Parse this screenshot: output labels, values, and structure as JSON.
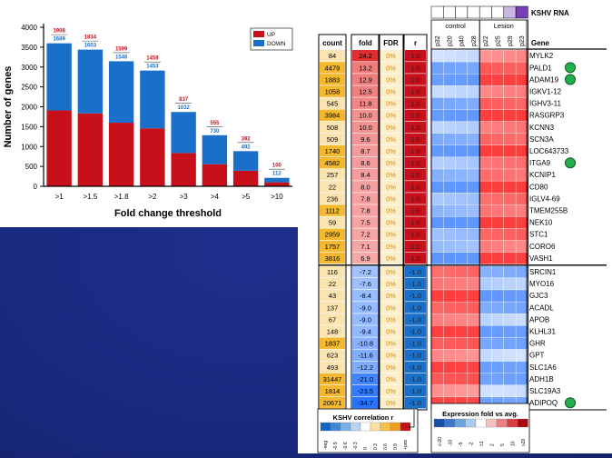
{
  "bar_chart": {
    "legend": [
      {
        "label": "UP",
        "color": "#c8101a"
      },
      {
        "label": "DOWN",
        "color": "#1a6fc9"
      }
    ]
  },
  "chart_data": [
    {
      "type": "bar",
      "xlabel": "Fold change threshold",
      "ylabel": "Number of genes",
      "ylim": [
        0,
        4000
      ],
      "yticks": [
        0,
        500,
        1000,
        1500,
        2000,
        2500,
        3000,
        3500,
        4000
      ],
      "categories": [
        ">1",
        ">1.5",
        ">1.8",
        ">2",
        ">3",
        ">4",
        ">5",
        ">10"
      ],
      "stacked": true,
      "series": [
        {
          "name": "UP",
          "color": "#c8101a",
          "values": [
            1908,
            1834,
            1599,
            1458,
            837,
            555,
            392,
            100
          ]
        },
        {
          "name": "DOWN",
          "color": "#1a6fc9",
          "values": [
            1689,
            1603,
            1546,
            1453,
            1032,
            730,
            492,
            112
          ]
        }
      ],
      "legend_position": "top-right"
    },
    {
      "type": "heatmap",
      "title": "KSHV RNA",
      "groups": [
        {
          "label": "control"
        },
        {
          "label": "Lesion"
        }
      ],
      "samples": [
        "p32",
        "p20",
        "p40",
        "p28",
        "p22",
        "p25",
        "p29",
        "p23"
      ],
      "column_headers": {
        "count": "count",
        "fold": "fold",
        "fdr": "FDR",
        "r": "r",
        "gene": "Gene"
      },
      "rows": [
        {
          "count": "84",
          "fold": "24.2",
          "fdr": "0%",
          "r": "1.0",
          "gene": "MYLK2",
          "dot": false
        },
        {
          "count": "4479",
          "fold": "13.2",
          "fdr": "0%",
          "r": "1.0",
          "gene": "PALD1",
          "dot": true
        },
        {
          "count": "1883",
          "fold": "12.9",
          "fdr": "0%",
          "r": "1.0",
          "gene": "ADAM19",
          "dot": true
        },
        {
          "count": "1058",
          "fold": "12.5",
          "fdr": "0%",
          "r": "1.0",
          "gene": "IGKV1-12",
          "dot": false
        },
        {
          "count": "545",
          "fold": "11.8",
          "fdr": "0%",
          "r": "1.0",
          "gene": "IGHV3-11",
          "dot": false
        },
        {
          "count": "3984",
          "fold": "10.0",
          "fdr": "0%",
          "r": "1.0",
          "gene": "RASGRP3",
          "dot": false
        },
        {
          "count": "508",
          "fold": "10.0",
          "fdr": "0%",
          "r": "1.0",
          "gene": "KCNN3",
          "dot": false
        },
        {
          "count": "509",
          "fold": "9.6",
          "fdr": "0%",
          "r": "1.0",
          "gene": "SCN3A",
          "dot": false
        },
        {
          "count": "1740",
          "fold": "8.7",
          "fdr": "0%",
          "r": "1.0",
          "gene": "LOC643733",
          "dot": false
        },
        {
          "count": "4582",
          "fold": "8.6",
          "fdr": "0%",
          "r": "1.0",
          "gene": "ITGA9",
          "dot": true
        },
        {
          "count": "257",
          "fold": "8.4",
          "fdr": "0%",
          "r": "1.0",
          "gene": "KCNIP1",
          "dot": false
        },
        {
          "count": "22",
          "fold": "8.0",
          "fdr": "0%",
          "r": "1.0",
          "gene": "CD80",
          "dot": false
        },
        {
          "count": "236",
          "fold": "7.8",
          "fdr": "0%",
          "r": "1.0",
          "gene": "IGLV4-69",
          "dot": false
        },
        {
          "count": "1112",
          "fold": "7.8",
          "fdr": "0%",
          "r": "1.0",
          "gene": "TMEM255B",
          "dot": false
        },
        {
          "count": "59",
          "fold": "7.5",
          "fdr": "0%",
          "r": "1.0",
          "gene": "NEK10",
          "dot": false
        },
        {
          "count": "2959",
          "fold": "7.2",
          "fdr": "0%",
          "r": "1.0",
          "gene": "STC1",
          "dot": false
        },
        {
          "count": "1757",
          "fold": "7.1",
          "fdr": "0%",
          "r": "1.0",
          "gene": "CORO6",
          "dot": false
        },
        {
          "count": "3816",
          "fold": "6.9",
          "fdr": "0%",
          "r": "1.0",
          "gene": "VASH1",
          "dot": false
        },
        {
          "count": "116",
          "fold": "-7.2",
          "fdr": "0%",
          "r": "-1.0",
          "gene": "SRCIN1",
          "dot": false
        },
        {
          "count": "22",
          "fold": "-7.6",
          "fdr": "0%",
          "r": "-1.0",
          "gene": "MYO16",
          "dot": false
        },
        {
          "count": "43",
          "fold": "-8.4",
          "fdr": "0%",
          "r": "-1.0",
          "gene": "GJC3",
          "dot": false
        },
        {
          "count": "137",
          "fold": "-9.0",
          "fdr": "0%",
          "r": "-1.0",
          "gene": "ACADL",
          "dot": false
        },
        {
          "count": "67",
          "fold": "-9.0",
          "fdr": "0%",
          "r": "-1.0",
          "gene": "APOB",
          "dot": false
        },
        {
          "count": "148",
          "fold": "-9.4",
          "fdr": "0%",
          "r": "-1.0",
          "gene": "KLHL31",
          "dot": false
        },
        {
          "count": "1837",
          "fold": "-10.8",
          "fdr": "0%",
          "r": "-1.0",
          "gene": "GHR",
          "dot": false
        },
        {
          "count": "623",
          "fold": "-11.6",
          "fdr": "0%",
          "r": "-1.0",
          "gene": "GPT",
          "dot": false
        },
        {
          "count": "493",
          "fold": "-12.2",
          "fdr": "0%",
          "r": "-1.0",
          "gene": "SLC1A6",
          "dot": false
        },
        {
          "count": "31447",
          "fold": "-21.0",
          "fdr": "0%",
          "r": "-1.0",
          "gene": "ADH1B",
          "dot": false
        },
        {
          "count": "1814",
          "fold": "-23.5",
          "fdr": "0%",
          "r": "-1.0",
          "gene": "SLC19A3",
          "dot": false
        },
        {
          "count": "20671",
          "fold": "-34.7",
          "fdr": "0%",
          "r": "-1.0",
          "gene": "ADIPOQ",
          "dot": true
        }
      ],
      "legend_correlation": {
        "title": "KSHV correlation r",
        "ticks": [
          "-neg",
          "-0.9",
          "-0.6",
          "-0.3",
          "0",
          "0.3",
          "0.6",
          "0.9",
          "+pos"
        ]
      },
      "legend_expression": {
        "title": "Expression fold vs avg.",
        "ticks": [
          "≤-20",
          "-10",
          "-5",
          "-2",
          "±1",
          "2",
          "5",
          "10",
          "≥20"
        ]
      }
    }
  ]
}
